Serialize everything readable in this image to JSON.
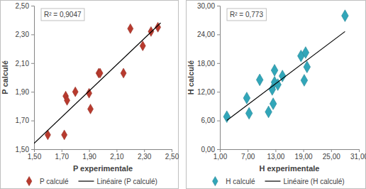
{
  "chart_data": [
    {
      "type": "scatter",
      "x_label": "P experimentale",
      "y_label": "P calculé",
      "annotation": "R² = 0,9047",
      "xlim": [
        1.5,
        2.5
      ],
      "ylim": [
        1.5,
        2.5
      ],
      "xticks": [
        {
          "value": 1.5,
          "label": "1,50"
        },
        {
          "value": 1.7,
          "label": "1,70"
        },
        {
          "value": 1.9,
          "label": "1,90"
        },
        {
          "value": 2.1,
          "label": "2,10"
        },
        {
          "value": 2.3,
          "label": "2,30"
        },
        {
          "value": 2.5,
          "label": "2,50"
        }
      ],
      "yticks": [
        {
          "value": 1.5,
          "label": "1,50"
        },
        {
          "value": 1.7,
          "label": "1,70"
        },
        {
          "value": 1.9,
          "label": "1,90"
        },
        {
          "value": 2.1,
          "label": "2,10"
        },
        {
          "value": 2.3,
          "label": "2,30"
        },
        {
          "value": 2.5,
          "label": "2,50"
        }
      ],
      "grid": false,
      "legend": "bottom",
      "series": [
        {
          "name": "P calculé",
          "color": "#b83a2e",
          "marker": "diamond",
          "x": [
            1.6,
            1.72,
            1.73,
            1.74,
            1.8,
            1.9,
            1.91,
            1.97,
            1.98,
            2.15,
            2.2,
            2.29,
            2.35,
            2.4
          ],
          "values": [
            1.6,
            1.6,
            1.87,
            1.84,
            1.9,
            1.89,
            1.78,
            2.03,
            2.03,
            2.03,
            2.34,
            2.22,
            2.32,
            2.35
          ]
        },
        {
          "name": "Linéaire (P calculé)",
          "type": "line",
          "color": "#000000",
          "line_style": "solid",
          "x": [
            1.5,
            2.42
          ],
          "values": [
            1.54,
            2.38
          ]
        }
      ]
    },
    {
      "type": "scatter",
      "x_label": "H experimentale",
      "y_label": "H calculé",
      "annotation": "R² = 0,773",
      "xlim": [
        1,
        31
      ],
      "ylim": [
        0,
        30
      ],
      "xticks": [
        {
          "value": 1,
          "label": "1,00"
        },
        {
          "value": 7,
          "label": "7,00"
        },
        {
          "value": 13,
          "label": "13,00"
        },
        {
          "value": 19,
          "label": "19,00"
        },
        {
          "value": 25,
          "label": "25,00"
        },
        {
          "value": 31,
          "label": "31,00"
        }
      ],
      "yticks": [
        {
          "value": 0,
          "label": "0,00"
        },
        {
          "value": 6,
          "label": "6,00"
        },
        {
          "value": 12,
          "label": "12,00"
        },
        {
          "value": 18,
          "label": "18,00"
        },
        {
          "value": 24,
          "label": "24,00"
        },
        {
          "value": 30,
          "label": "30,00"
        }
      ],
      "grid": false,
      "legend": "bottom",
      "series": [
        {
          "name": "H calculé",
          "color": "#31a6b9",
          "marker": "diamond",
          "x": [
            2.5,
            6.8,
            7.3,
            9.6,
            11.5,
            12.3,
            12.5,
            12.8,
            12.8,
            13.5,
            14.5,
            18.5,
            19.2,
            19.5,
            19.8,
            28.0
          ],
          "values": [
            6.8,
            10.7,
            7.5,
            14.5,
            7.8,
            12.5,
            9.5,
            14.0,
            16.5,
            13.5,
            15.3,
            19.5,
            14.4,
            20.2,
            17.2,
            27.9
          ]
        },
        {
          "name": "Linéaire (H calculé)",
          "type": "line",
          "color": "#000000",
          "line_style": "solid",
          "x": [
            2.5,
            28.0
          ],
          "values": [
            6.0,
            24.6
          ]
        }
      ]
    }
  ]
}
